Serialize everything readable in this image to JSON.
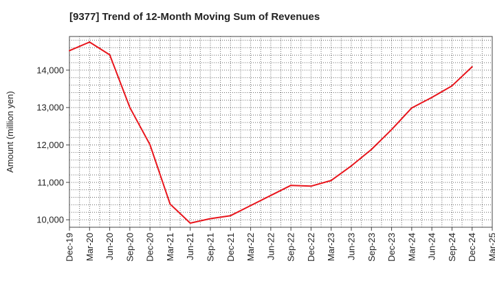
{
  "chart_data": {
    "type": "line",
    "title": "[9377]  Trend of 12-Month Moving Sum of Revenues",
    "xlabel": "",
    "ylabel": "Amount (million yen)",
    "categories": [
      "Dec-19",
      "Mar-20",
      "Jun-20",
      "Sep-20",
      "Dec-20",
      "Mar-21",
      "Jun-21",
      "Sep-21",
      "Dec-21",
      "Mar-22",
      "Jun-22",
      "Sep-22",
      "Dec-22",
      "Mar-23",
      "Jun-23",
      "Sep-23",
      "Dec-23",
      "Mar-24",
      "Jun-24",
      "Sep-24",
      "Dec-24",
      "Mar-25"
    ],
    "series": [
      {
        "name": "",
        "color": "#e8141b",
        "values": [
          14520,
          14750,
          14410,
          13000,
          12010,
          10420,
          9910,
          10030,
          10110,
          10380,
          10650,
          10920,
          10900,
          11050,
          11440,
          11880,
          12410,
          12990,
          13270,
          13580,
          14090,
          null
        ]
      }
    ],
    "ylim": [
      9800,
      14900
    ],
    "yticks": [
      10000,
      11000,
      12000,
      13000,
      14000
    ],
    "ytick_labels": [
      "10,000",
      "11,000",
      "12,000",
      "13,000",
      "14,000"
    ],
    "grid": true,
    "legend": "none"
  }
}
